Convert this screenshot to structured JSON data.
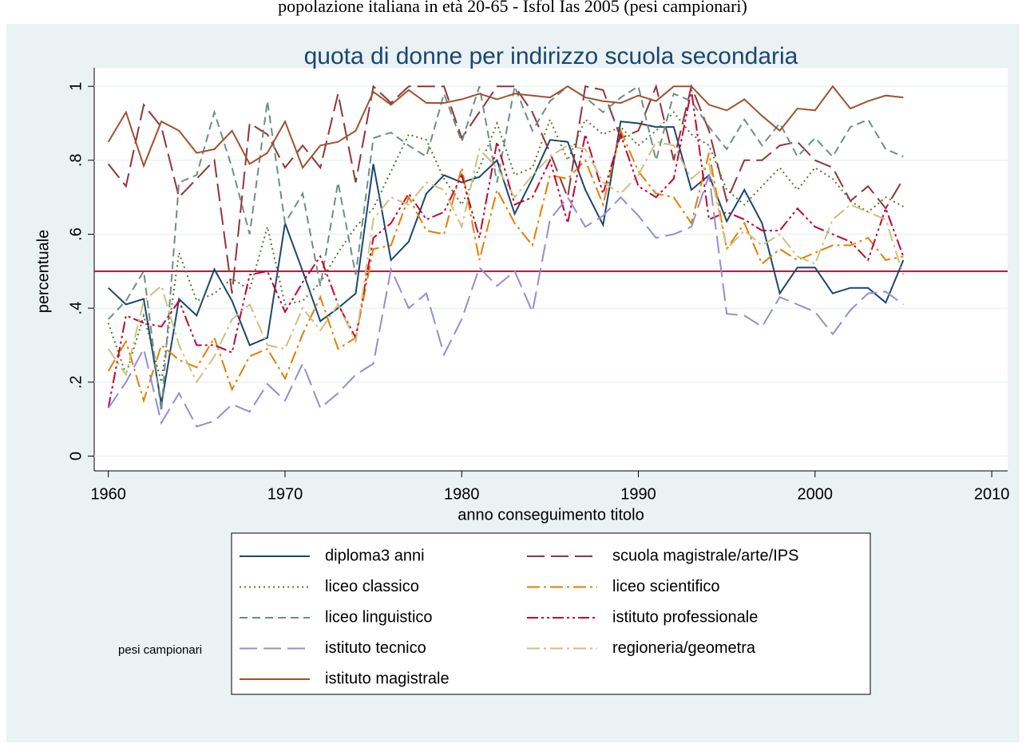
{
  "chart_data": {
    "type": "line",
    "subtitle": "popolazione italiana in età 20-65 - Isfol Ias 2005 (pesi campionari)",
    "title": "quota di donne per indirizzo scuola secondaria",
    "x_label": "anno conseguimento titolo",
    "y_label": "percentuale",
    "note": "pesi campionari",
    "reference_line": {
      "value": 0.5,
      "color": "#a0183c"
    },
    "grid": true,
    "xlim": [
      1959.2,
      2010.9
    ],
    "ylim": [
      -0.04,
      1.05
    ],
    "xticks": [
      1960,
      1970,
      1980,
      1990,
      2000,
      2010
    ],
    "yticks": [
      0,
      {
        "value": 0.2,
        "label": ".2"
      },
      {
        "value": 0.4,
        "label": ".4"
      },
      {
        "value": 0.6,
        "label": ".6"
      },
      {
        "value": 0.8,
        "label": ".8"
      },
      1
    ],
    "x": [
      1960,
      1961,
      1962,
      1963,
      1964,
      1965,
      1966,
      1967,
      1968,
      1969,
      1970,
      1971,
      1972,
      1973,
      1974,
      1975,
      1976,
      1977,
      1978,
      1979,
      1980,
      1981,
      1982,
      1983,
      1984,
      1985,
      1986,
      1987,
      1988,
      1989,
      1990,
      1991,
      1992,
      1993,
      1994,
      1995,
      1996,
      1997,
      1998,
      1999,
      2000,
      2001,
      2002,
      2003,
      2004,
      2005
    ],
    "series": [
      {
        "name": "diploma3 anni",
        "color": "#1a476f",
        "style": "solid",
        "values": [
          0.455,
          0.41,
          0.425,
          0.14,
          0.425,
          0.38,
          0.505,
          0.42,
          0.3,
          0.32,
          0.63,
          0.5,
          0.365,
          0.4,
          0.44,
          0.79,
          0.53,
          0.58,
          0.71,
          0.76,
          0.74,
          0.755,
          0.8,
          0.655,
          0.75,
          0.855,
          0.85,
          0.72,
          0.625,
          0.905,
          0.9,
          0.89,
          0.89,
          0.72,
          0.76,
          0.635,
          0.72,
          0.63,
          0.44,
          0.51,
          0.51,
          0.44,
          0.455,
          0.455,
          0.415,
          0.53
        ]
      },
      {
        "name": "scuola magistrale/arte/IPS",
        "color": "#90353b",
        "style": "longdash",
        "values": [
          0.79,
          0.73,
          0.95,
          0.89,
          0.7,
          0.75,
          0.8,
          0.44,
          0.9,
          0.87,
          0.78,
          0.84,
          0.78,
          0.98,
          0.74,
          1.0,
          0.955,
          1.0,
          1.0,
          1.0,
          0.86,
          0.93,
          1.0,
          1.0,
          0.93,
          0.82,
          0.7,
          1.0,
          0.99,
          0.86,
          0.88,
          1.0,
          0.8,
          1.0,
          0.88,
          0.69,
          0.8,
          0.8,
          0.84,
          0.85,
          0.8,
          0.78,
          0.69,
          0.73,
          0.67,
          0.75
        ]
      },
      {
        "name": "liceo classico",
        "color": "#55752f",
        "style": "dot",
        "values": [
          0.36,
          0.22,
          0.38,
          0.2,
          0.55,
          0.42,
          0.44,
          0.48,
          0.45,
          0.62,
          0.41,
          0.42,
          0.47,
          0.55,
          0.62,
          0.67,
          0.77,
          0.87,
          0.855,
          0.75,
          0.68,
          0.78,
          0.9,
          0.76,
          0.78,
          0.91,
          0.8,
          0.91,
          0.87,
          0.89,
          0.84,
          0.88,
          0.93,
          0.87,
          0.84,
          0.72,
          0.68,
          0.73,
          0.78,
          0.72,
          0.78,
          0.75,
          0.69,
          0.66,
          0.7,
          0.675
        ]
      },
      {
        "name": "liceo scientifico",
        "color": "#e37e00",
        "style": "dashdot",
        "values": [
          0.23,
          0.31,
          0.15,
          0.3,
          0.26,
          0.24,
          0.32,
          0.18,
          0.27,
          0.29,
          0.21,
          0.33,
          0.43,
          0.29,
          0.32,
          0.56,
          0.57,
          0.7,
          0.61,
          0.6,
          0.78,
          0.53,
          0.72,
          0.63,
          0.57,
          0.76,
          0.75,
          0.8,
          0.68,
          0.88,
          0.77,
          0.71,
          0.7,
          0.63,
          0.82,
          0.56,
          0.63,
          0.52,
          0.56,
          0.53,
          0.55,
          0.57,
          0.57,
          0.59,
          0.53,
          0.54
        ]
      },
      {
        "name": "liceo linguistico",
        "color": "#6e8e84",
        "style": "dash",
        "values": [
          0.37,
          0.42,
          0.5,
          0.12,
          0.74,
          0.76,
          0.93,
          0.78,
          0.6,
          0.96,
          0.63,
          0.71,
          0.46,
          0.74,
          0.49,
          0.86,
          0.875,
          0.84,
          0.81,
          0.98,
          0.85,
          1.0,
          0.74,
          1.0,
          0.88,
          0.96,
          1.0,
          0.97,
          0.93,
          0.97,
          1.0,
          0.8,
          0.98,
          0.96,
          0.89,
          0.83,
          0.91,
          0.84,
          0.9,
          0.81,
          0.86,
          0.81,
          0.89,
          0.91,
          0.83,
          0.81
        ]
      },
      {
        "name": "istituto professionale",
        "color": "#c10534",
        "style": "dashdotdot",
        "values": [
          0.13,
          0.38,
          0.36,
          0.35,
          0.42,
          0.3,
          0.3,
          0.28,
          0.49,
          0.5,
          0.39,
          0.47,
          0.54,
          0.41,
          0.32,
          0.59,
          0.63,
          0.71,
          0.64,
          0.66,
          0.76,
          0.59,
          0.85,
          0.68,
          0.7,
          0.8,
          0.63,
          0.87,
          0.71,
          0.87,
          0.73,
          0.7,
          0.75,
          0.99,
          0.64,
          0.66,
          0.64,
          0.61,
          0.61,
          0.67,
          0.62,
          0.6,
          0.58,
          0.53,
          0.67,
          0.54
        ]
      },
      {
        "name": "istituto tecnico",
        "color": "#938dd2",
        "style": "longdash",
        "values": [
          0.13,
          0.2,
          0.29,
          0.09,
          0.17,
          0.08,
          0.095,
          0.14,
          0.12,
          0.195,
          0.15,
          0.25,
          0.13,
          0.17,
          0.22,
          0.25,
          0.505,
          0.4,
          0.44,
          0.275,
          0.37,
          0.51,
          0.46,
          0.5,
          0.39,
          0.64,
          0.7,
          0.62,
          0.65,
          0.7,
          0.65,
          0.59,
          0.6,
          0.62,
          0.76,
          0.385,
          0.38,
          0.35,
          0.43,
          0.41,
          0.39,
          0.33,
          0.395,
          0.44,
          0.445,
          0.41
        ]
      },
      {
        "name": "regioneria/geometra",
        "color": "#cac27e",
        "style": "dashdot",
        "values": [
          0.29,
          0.22,
          0.42,
          0.46,
          0.3,
          0.2,
          0.27,
          0.37,
          0.41,
          0.3,
          0.29,
          0.4,
          0.34,
          0.41,
          0.31,
          0.64,
          0.7,
          0.68,
          0.74,
          0.72,
          0.62,
          0.83,
          0.78,
          0.7,
          0.76,
          0.81,
          0.84,
          0.83,
          0.74,
          0.71,
          0.76,
          0.85,
          0.84,
          0.75,
          0.79,
          0.56,
          0.61,
          0.57,
          0.6,
          0.54,
          0.52,
          0.64,
          0.68,
          0.66,
          0.64,
          0.49
        ]
      },
      {
        "name": "istituto magistrale",
        "color": "#a0522d",
        "style": "solid",
        "values": [
          0.85,
          0.93,
          0.785,
          0.905,
          0.88,
          0.82,
          0.83,
          0.88,
          0.79,
          0.82,
          0.905,
          0.78,
          0.84,
          0.85,
          0.88,
          0.985,
          0.95,
          0.99,
          0.955,
          0.955,
          0.965,
          0.98,
          0.965,
          0.98,
          0.975,
          0.97,
          1.0,
          0.97,
          0.96,
          0.955,
          0.975,
          0.96,
          1.0,
          1.0,
          0.95,
          0.935,
          0.965,
          0.92,
          0.88,
          0.94,
          0.935,
          1.0,
          0.94,
          0.96,
          0.975,
          0.97
        ]
      }
    ]
  }
}
